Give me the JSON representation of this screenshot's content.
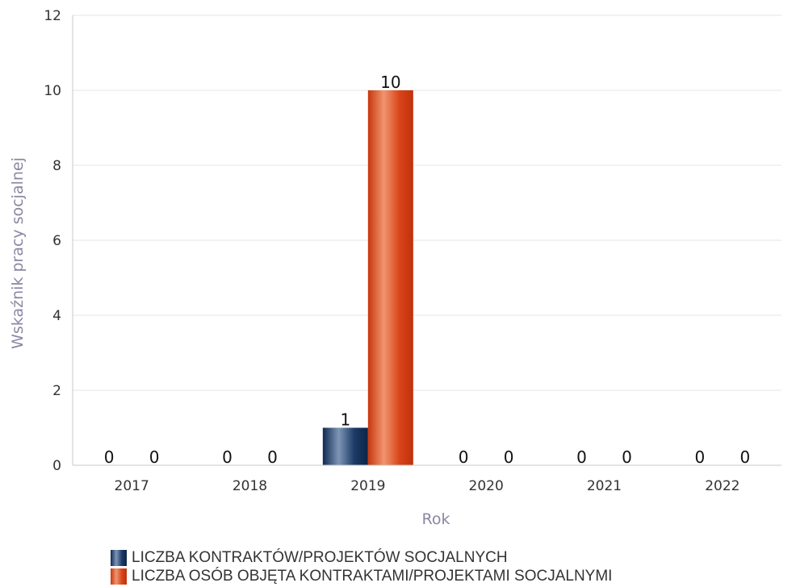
{
  "chart_data": {
    "type": "bar",
    "categories": [
      "2017",
      "2018",
      "2019",
      "2020",
      "2021",
      "2022"
    ],
    "series": [
      {
        "name": "LICZBA KONTRAKTÓW/PROJEKTÓW SOCJALNYCH",
        "values": [
          0,
          0,
          1,
          0,
          0,
          0
        ],
        "color": "#1b3a66"
      },
      {
        "name": "LICZBA OSÓB OBJĘTA KONTRAKTAMI/PROJEKTAMI SOCJALNYMI",
        "values": [
          0,
          0,
          10,
          0,
          0,
          0
        ],
        "color": "#d9441a"
      }
    ],
    "xlabel": "Rok",
    "ylabel": "Wskaźnik pracy socjalnej",
    "ylim": [
      0,
      12
    ],
    "yticks": [
      0,
      2,
      4,
      6,
      8,
      10,
      12
    ],
    "grid": true,
    "legend_position": "bottom-left",
    "data_labels": true
  }
}
